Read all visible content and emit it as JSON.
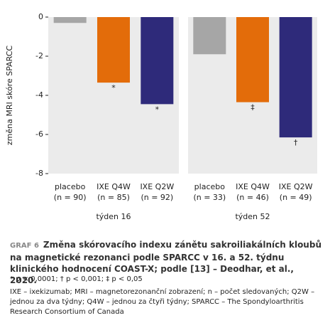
{
  "chart_data": [
    {
      "type": "bar",
      "ylabel": "změna MRI skóre SPARCC",
      "panel_title": "týden 16",
      "categories": [
        "placebo",
        "IXE Q4W",
        "IXE Q2W"
      ],
      "sublabels": [
        "(n = 90)",
        "(n = 85)",
        "(n = 92)"
      ],
      "values": [
        -0.3,
        -3.35,
        -4.45
      ],
      "colors": [
        "#a6a6a6",
        "#e36c0a",
        "#2e2a7a"
      ],
      "annotations": [
        null,
        "*",
        "*"
      ],
      "ylim": [
        -8,
        0
      ],
      "yticks": [
        0,
        -2,
        -4,
        -6,
        -8
      ]
    },
    {
      "type": "bar",
      "panel_title": "týden 52",
      "categories": [
        "placebo",
        "IXE Q4W",
        "IXE Q2W"
      ],
      "sublabels": [
        "(n = 33)",
        "(n = 46)",
        "(n = 49)"
      ],
      "values": [
        -1.9,
        -4.35,
        -6.15
      ],
      "colors": [
        "#a6a6a6",
        "#e36c0a",
        "#2e2a7a"
      ],
      "annotations": [
        null,
        "‡",
        "†"
      ],
      "ylim": [
        -8,
        0
      ]
    }
  ],
  "caption": {
    "label": "GRAF 6",
    "text": "Změna skórovacího indexu zánětu sakroiliakálních kloubů na magnetické rezonanci podle SPARCC v 16. a 52. týdnu klinického hodnocení COAST-X; podle [13] – Deodhar, et al., 2020."
  },
  "footnote": "* p < 0,0001; † p < 0,001; ‡ p < 0,05",
  "abbreviations": "IXE – ixekizumab; MRI – magnetorezonanční zobrazení; n – počet sledovaných; Q2W – jednou za dva týdny; Q4W – jednou za čtyři týdny; SPARCC – The Spondyloarthritis Research Consortium of Canada"
}
